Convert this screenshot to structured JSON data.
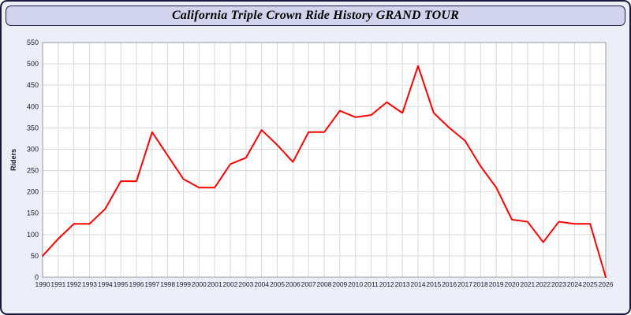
{
  "window": {
    "title": "California Triple Crown Ride History GRAND TOUR"
  },
  "chart_data": {
    "type": "line",
    "title": "California Triple Crown Ride History GRAND TOUR",
    "xlabel": "",
    "ylabel": "Riders",
    "ylim": [
      0,
      550
    ],
    "ytick_step": 50,
    "grid": true,
    "legend_position": "none",
    "line_color": "#ff0000",
    "categories": [
      1990,
      1991,
      1992,
      1993,
      1994,
      1995,
      1996,
      1997,
      1998,
      1999,
      2000,
      2001,
      2002,
      2003,
      2004,
      2005,
      2006,
      2007,
      2008,
      2009,
      2010,
      2011,
      2012,
      2013,
      2014,
      2015,
      2016,
      2017,
      2018,
      2019,
      2020,
      2021,
      2022,
      2023,
      2024,
      2025,
      2026
    ],
    "values": [
      50,
      90,
      125,
      125,
      160,
      225,
      225,
      340,
      285,
      230,
      210,
      210,
      265,
      280,
      345,
      310,
      270,
      340,
      340,
      390,
      375,
      380,
      410,
      385,
      495,
      385,
      350,
      320,
      260,
      210,
      135,
      130,
      82,
      130,
      125,
      125,
      0
    ]
  },
  "colors": {
    "frame_border": "#1a1a3a",
    "panel_bg": "#eceef8",
    "titlebar_bg": "#d2d4ee",
    "plot_bg": "#ffffff",
    "gridline": "#d9d9d9",
    "plot_border": "#999999",
    "line": "#ff0000",
    "tick_text": "#1a1a2e"
  }
}
